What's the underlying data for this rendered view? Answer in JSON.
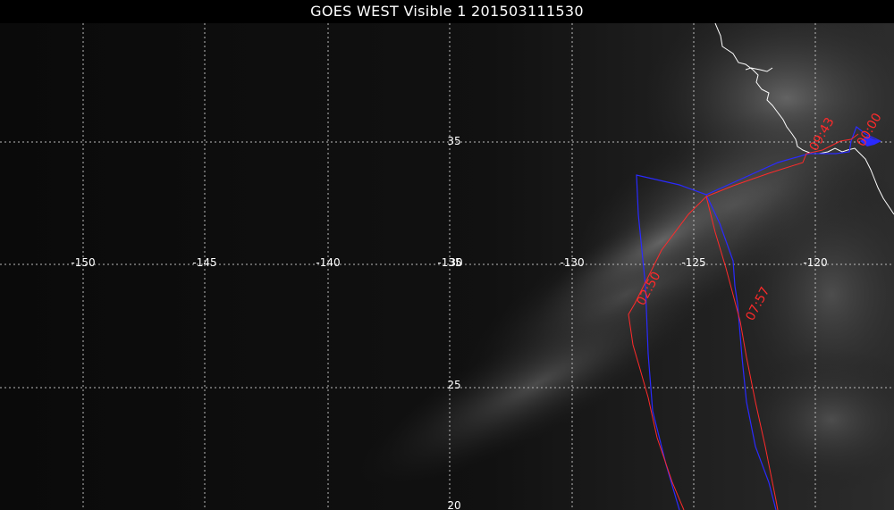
{
  "title": "GOES WEST Visible 1 201503111530",
  "map": {
    "lon_labels": [
      "-150",
      "-145",
      "-140",
      "-135",
      "-130",
      "-125",
      "-120"
    ],
    "lat_labels": [
      "35",
      "30",
      "25",
      "20"
    ],
    "grid_color": "#bbbbbb",
    "coastline_color": "#ffffff",
    "track_colors": {
      "red": "#ff2a2a",
      "blue": "#2a2aff"
    },
    "time_labels": [
      "02:50",
      "07:57",
      "09:43",
      "00:00"
    ]
  }
}
